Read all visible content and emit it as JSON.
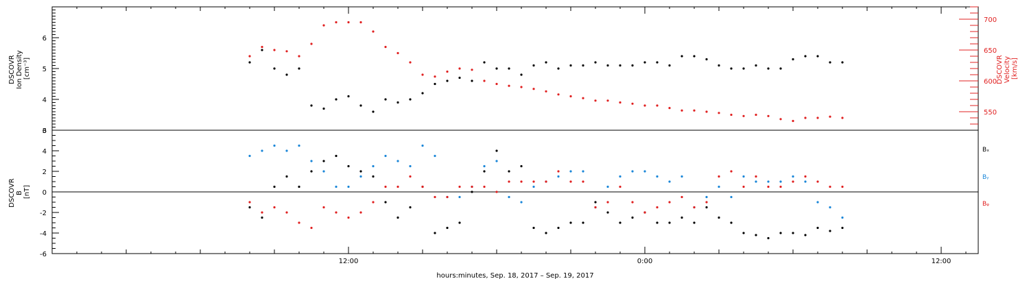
{
  "xlabel": "hours:minutes, Sep. 18, 2017 – Sep. 19, 2017",
  "x_ticks": [
    {
      "hour": 12,
      "label": "12:00"
    },
    {
      "hour": 24,
      "label": "0:00"
    },
    {
      "hour": 36,
      "label": "12:00"
    }
  ],
  "colors": {
    "bx": "#000000",
    "by": "#1a86d8",
    "bz": "#e02020",
    "axis": "#000000",
    "velocity": "#e02020"
  },
  "chart_data": [
    {
      "type": "scatter",
      "panel": "plasma",
      "x_unit": "hours since 2017-09-18 00:00",
      "xlim": [
        0,
        37.5
      ],
      "ylabel_left": [
        "DSCOVR",
        "Ion Density",
        "[cm⁻³]"
      ],
      "ylabel_right": [
        "DSCOVR",
        "Velocity",
        "[km/s]"
      ],
      "ylim_left": [
        3,
        7
      ],
      "ylim_right": [
        520,
        720
      ],
      "left_ticks": [
        "3",
        "4",
        "5",
        "6"
      ],
      "right_ticks": [
        "550",
        "600",
        "650",
        "700"
      ],
      "series": [
        {
          "name": "Ion Density",
          "axis": "left",
          "color": "#000000",
          "points": [
            [
              8.0,
              5.2
            ],
            [
              8.5,
              5.6
            ],
            [
              9.0,
              5.0
            ],
            [
              9.5,
              4.8
            ],
            [
              10.0,
              5.0
            ],
            [
              10.5,
              3.8
            ],
            [
              11.0,
              3.7
            ],
            [
              11.5,
              4.0
            ],
            [
              12.0,
              4.1
            ],
            [
              12.5,
              3.8
            ],
            [
              13.0,
              3.6
            ],
            [
              13.5,
              4.0
            ],
            [
              14.0,
              3.9
            ],
            [
              14.5,
              4.0
            ],
            [
              15.0,
              4.2
            ],
            [
              15.5,
              4.5
            ],
            [
              16.0,
              4.6
            ],
            [
              16.5,
              4.7
            ],
            [
              17.0,
              4.6
            ],
            [
              17.5,
              5.2
            ],
            [
              18.0,
              5.0
            ],
            [
              18.5,
              5.0
            ],
            [
              19.0,
              4.8
            ],
            [
              19.5,
              5.1
            ],
            [
              20.0,
              5.2
            ],
            [
              20.5,
              5.0
            ],
            [
              21.0,
              5.1
            ],
            [
              21.5,
              5.1
            ],
            [
              22.0,
              5.2
            ],
            [
              22.5,
              5.1
            ],
            [
              23.0,
              5.1
            ],
            [
              23.5,
              5.1
            ],
            [
              24.0,
              5.2
            ],
            [
              24.5,
              5.2
            ],
            [
              25.0,
              5.1
            ],
            [
              25.5,
              5.4
            ],
            [
              26.0,
              5.4
            ],
            [
              26.5,
              5.3
            ],
            [
              27.0,
              5.1
            ],
            [
              27.5,
              5.0
            ],
            [
              28.0,
              5.0
            ],
            [
              28.5,
              5.1
            ],
            [
              29.0,
              5.0
            ],
            [
              29.5,
              5.0
            ],
            [
              30.0,
              5.3
            ],
            [
              30.5,
              5.4
            ],
            [
              31.0,
              5.4
            ],
            [
              31.5,
              5.2
            ],
            [
              32.0,
              5.2
            ]
          ]
        },
        {
          "name": "Velocity",
          "axis": "right",
          "color": "#e02020",
          "points": [
            [
              8.0,
              640
            ],
            [
              8.5,
              655
            ],
            [
              9.0,
              650
            ],
            [
              9.5,
              648
            ],
            [
              10.0,
              640
            ],
            [
              10.5,
              660
            ],
            [
              11.0,
              690
            ],
            [
              11.5,
              695
            ],
            [
              12.0,
              695
            ],
            [
              12.5,
              695
            ],
            [
              13.0,
              680
            ],
            [
              13.5,
              655
            ],
            [
              14.0,
              645
            ],
            [
              14.5,
              630
            ],
            [
              15.0,
              610
            ],
            [
              15.5,
              607
            ],
            [
              16.0,
              615
            ],
            [
              16.5,
              620
            ],
            [
              17.0,
              618
            ],
            [
              17.5,
              600
            ],
            [
              18.0,
              595
            ],
            [
              18.5,
              592
            ],
            [
              19.0,
              590
            ],
            [
              19.5,
              587
            ],
            [
              20.0,
              583
            ],
            [
              20.5,
              578
            ],
            [
              21.0,
              575
            ],
            [
              21.5,
              572
            ],
            [
              22.0,
              568
            ],
            [
              22.5,
              568
            ],
            [
              23.0,
              565
            ],
            [
              23.5,
              563
            ],
            [
              24.0,
              560
            ],
            [
              24.5,
              560
            ],
            [
              25.0,
              556
            ],
            [
              25.5,
              552
            ],
            [
              26.0,
              552
            ],
            [
              26.5,
              550
            ],
            [
              27.0,
              548
            ],
            [
              27.5,
              545
            ],
            [
              28.0,
              543
            ],
            [
              28.5,
              545
            ],
            [
              29.0,
              543
            ],
            [
              29.5,
              538
            ],
            [
              30.0,
              535
            ],
            [
              30.5,
              540
            ],
            [
              31.0,
              540
            ],
            [
              31.5,
              542
            ],
            [
              32.0,
              540
            ]
          ]
        }
      ]
    },
    {
      "type": "scatter",
      "panel": "magnetic",
      "x_unit": "hours since 2017-09-18 00:00",
      "xlim": [
        0,
        37.5
      ],
      "ylabel_left": [
        "DSCOVR",
        "B",
        "[nT]"
      ],
      "ylim": [
        -6,
        6
      ],
      "left_ticks": [
        "-6",
        "-4",
        "-2",
        "0",
        "2",
        "4",
        "6"
      ],
      "zero_line": true,
      "legend": [
        "Bₓ",
        "Bᵧ",
        "Bᵩ"
      ],
      "series": [
        {
          "name": "Bx",
          "color": "#000000",
          "points": [
            [
              8.0,
              -1.5
            ],
            [
              8.5,
              -2.5
            ],
            [
              9.0,
              0.5
            ],
            [
              9.5,
              1.5
            ],
            [
              10.0,
              0.5
            ],
            [
              10.5,
              2.0
            ],
            [
              11.0,
              3.0
            ],
            [
              11.5,
              3.5
            ],
            [
              12.0,
              2.5
            ],
            [
              12.5,
              2.0
            ],
            [
              13.0,
              1.5
            ],
            [
              13.5,
              -1.0
            ],
            [
              14.0,
              -2.5
            ],
            [
              14.5,
              -1.5
            ],
            [
              15.0,
              0.5
            ],
            [
              15.5,
              -4.0
            ],
            [
              16.0,
              -3.5
            ],
            [
              16.5,
              -3.0
            ],
            [
              17.0,
              0.0
            ],
            [
              17.5,
              2.0
            ],
            [
              18.0,
              4.0
            ],
            [
              18.5,
              2.0
            ],
            [
              19.0,
              2.5
            ],
            [
              19.5,
              -3.5
            ],
            [
              20.0,
              -4.0
            ],
            [
              20.5,
              -3.5
            ],
            [
              21.0,
              -3.0
            ],
            [
              21.5,
              -3.0
            ],
            [
              22.0,
              -1.0
            ],
            [
              22.5,
              -2.0
            ],
            [
              23.0,
              -3.0
            ],
            [
              23.5,
              -2.5
            ],
            [
              24.0,
              -2.0
            ],
            [
              24.5,
              -3.0
            ],
            [
              25.0,
              -3.0
            ],
            [
              25.5,
              -2.5
            ],
            [
              26.0,
              -3.0
            ],
            [
              26.5,
              -1.5
            ],
            [
              27.0,
              -2.5
            ],
            [
              27.5,
              -3.0
            ],
            [
              28.0,
              -4.0
            ],
            [
              28.5,
              -4.2
            ],
            [
              29.0,
              -4.5
            ],
            [
              29.5,
              -4.0
            ],
            [
              30.0,
              -4.0
            ],
            [
              30.5,
              -4.2
            ],
            [
              31.0,
              -3.5
            ],
            [
              31.5,
              -3.8
            ],
            [
              32.0,
              -3.5
            ]
          ]
        },
        {
          "name": "By",
          "color": "#1a86d8",
          "points": [
            [
              8.0,
              3.5
            ],
            [
              8.5,
              4.0
            ],
            [
              9.0,
              4.5
            ],
            [
              9.5,
              4.0
            ],
            [
              10.0,
              4.5
            ],
            [
              10.5,
              3.0
            ],
            [
              11.0,
              2.0
            ],
            [
              11.5,
              0.5
            ],
            [
              12.0,
              0.5
            ],
            [
              12.5,
              1.5
            ],
            [
              13.0,
              2.5
            ],
            [
              13.5,
              3.5
            ],
            [
              14.0,
              3.0
            ],
            [
              14.5,
              2.5
            ],
            [
              15.0,
              4.5
            ],
            [
              15.5,
              3.5
            ],
            [
              16.0,
              -0.5
            ],
            [
              16.5,
              -0.5
            ],
            [
              17.0,
              0.5
            ],
            [
              17.5,
              2.5
            ],
            [
              18.0,
              3.0
            ],
            [
              18.5,
              -0.5
            ],
            [
              19.0,
              -1.0
            ],
            [
              19.5,
              0.5
            ],
            [
              20.0,
              1.0
            ],
            [
              20.5,
              1.5
            ],
            [
              21.0,
              2.0
            ],
            [
              21.5,
              2.0
            ],
            [
              22.0,
              -1.5
            ],
            [
              22.5,
              0.5
            ],
            [
              23.0,
              1.5
            ],
            [
              23.5,
              2.0
            ],
            [
              24.0,
              2.0
            ],
            [
              24.5,
              1.5
            ],
            [
              25.0,
              1.0
            ],
            [
              25.5,
              1.5
            ],
            [
              26.0,
              -1.5
            ],
            [
              26.5,
              -0.5
            ],
            [
              27.0,
              0.5
            ],
            [
              27.5,
              -0.5
            ],
            [
              28.0,
              1.5
            ],
            [
              28.5,
              1.0
            ],
            [
              29.0,
              1.0
            ],
            [
              29.5,
              1.0
            ],
            [
              30.0,
              1.5
            ],
            [
              30.5,
              1.0
            ],
            [
              31.0,
              -1.0
            ],
            [
              31.5,
              -1.5
            ],
            [
              32.0,
              -2.5
            ]
          ]
        },
        {
          "name": "Bz",
          "color": "#e02020",
          "points": [
            [
              8.0,
              -1.0
            ],
            [
              8.5,
              -2.0
            ],
            [
              9.0,
              -1.5
            ],
            [
              9.5,
              -2.0
            ],
            [
              10.0,
              -3.0
            ],
            [
              10.5,
              -3.5
            ],
            [
              11.0,
              -1.5
            ],
            [
              11.5,
              -2.0
            ],
            [
              12.0,
              -2.5
            ],
            [
              12.5,
              -2.0
            ],
            [
              13.0,
              -1.0
            ],
            [
              13.5,
              0.5
            ],
            [
              14.0,
              0.5
            ],
            [
              14.5,
              1.5
            ],
            [
              15.0,
              0.5
            ],
            [
              15.5,
              -0.5
            ],
            [
              16.0,
              -0.5
            ],
            [
              16.5,
              0.5
            ],
            [
              17.0,
              0.5
            ],
            [
              17.5,
              0.5
            ],
            [
              18.0,
              0.0
            ],
            [
              18.5,
              1.0
            ],
            [
              19.0,
              1.0
            ],
            [
              19.5,
              1.0
            ],
            [
              20.0,
              1.0
            ],
            [
              20.5,
              2.0
            ],
            [
              21.0,
              1.0
            ],
            [
              21.5,
              1.0
            ],
            [
              22.0,
              -1.5
            ],
            [
              22.5,
              -1.0
            ],
            [
              23.0,
              0.5
            ],
            [
              23.5,
              -1.0
            ],
            [
              24.0,
              -2.0
            ],
            [
              24.5,
              -1.5
            ],
            [
              25.0,
              -1.0
            ],
            [
              25.5,
              -0.5
            ],
            [
              26.0,
              -1.5
            ],
            [
              26.5,
              -1.0
            ],
            [
              27.0,
              1.5
            ],
            [
              27.5,
              2.0
            ],
            [
              28.0,
              0.5
            ],
            [
              28.5,
              1.5
            ],
            [
              29.0,
              0.5
            ],
            [
              29.5,
              0.5
            ],
            [
              30.0,
              1.0
            ],
            [
              30.5,
              1.5
            ],
            [
              31.0,
              1.0
            ],
            [
              31.5,
              0.5
            ],
            [
              32.0,
              0.5
            ]
          ]
        }
      ]
    }
  ]
}
